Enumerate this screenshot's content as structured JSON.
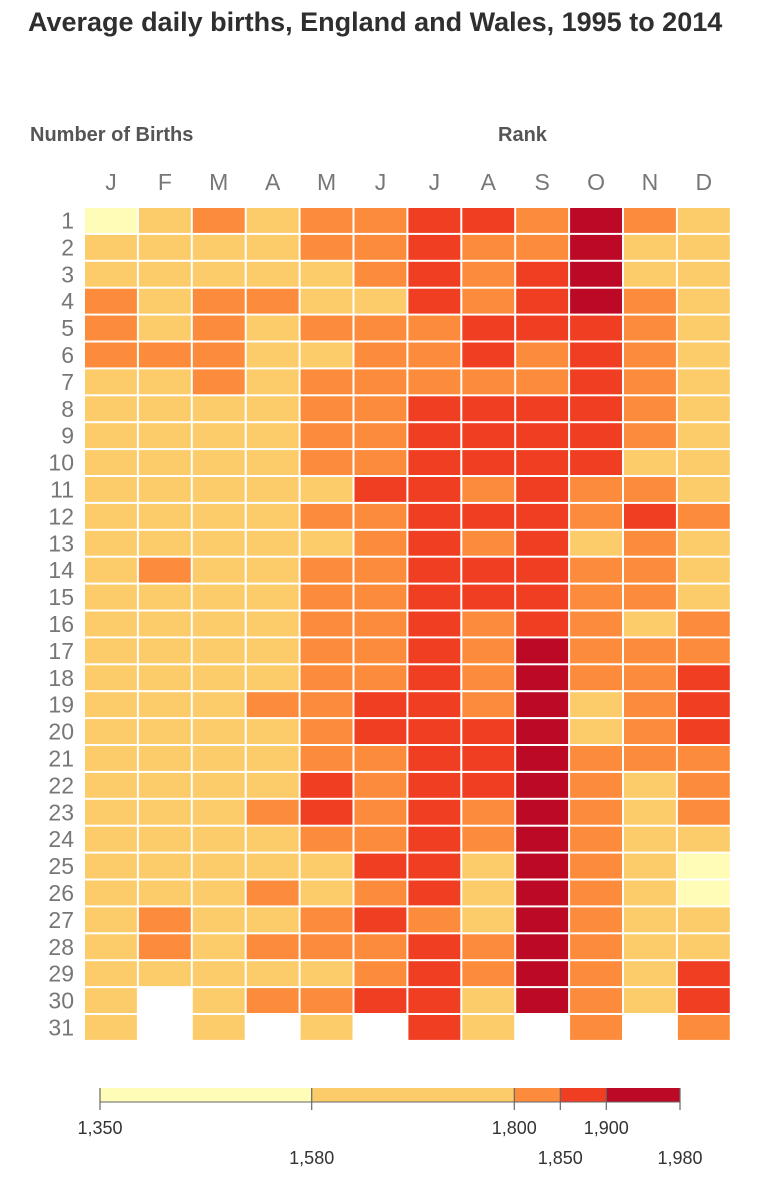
{
  "title": "Average daily births, England and Wales, 1995 to 2014",
  "left_label": "Number of Births",
  "rank_label": "Rank",
  "colors": {
    "c1": "#fffcb8",
    "c2": "#fdcc6a",
    "c3": "#fc8b3c",
    "c4": "#f03e22",
    "c5": "#bc0a26"
  },
  "chart_data": {
    "type": "heatmap",
    "title": "Average daily births, England and Wales, 1995 to 2014",
    "xlabel": "",
    "ylabel": "",
    "months": [
      "J",
      "F",
      "M",
      "A",
      "M",
      "J",
      "J",
      "A",
      "S",
      "O",
      "N",
      "D"
    ],
    "days": [
      1,
      2,
      3,
      4,
      5,
      6,
      7,
      8,
      9,
      10,
      11,
      12,
      13,
      14,
      15,
      16,
      17,
      18,
      19,
      20,
      21,
      22,
      23,
      24,
      25,
      26,
      27,
      28,
      29,
      30,
      31
    ],
    "color_bins": [
      {
        "from": 1350,
        "to": 1580,
        "level": 1
      },
      {
        "from": 1580,
        "to": 1800,
        "level": 2
      },
      {
        "from": 1800,
        "to": 1850,
        "level": 3
      },
      {
        "from": 1850,
        "to": 1900,
        "level": 4
      },
      {
        "from": 1900,
        "to": 1980,
        "level": 5
      }
    ],
    "legend_ticks_upper": [
      "1,350",
      "1,800",
      "1,900"
    ],
    "legend_ticks_lower": [
      "1,580",
      "1,850",
      "1,980"
    ],
    "levels_by_month": [
      [
        1,
        2,
        2,
        3,
        3,
        3,
        2,
        2,
        2,
        2,
        2,
        2,
        2,
        2,
        2,
        2,
        2,
        2,
        2,
        2,
        2,
        2,
        2,
        2,
        2,
        2,
        2,
        2,
        2,
        2,
        2
      ],
      [
        2,
        2,
        2,
        2,
        2,
        3,
        2,
        2,
        2,
        2,
        2,
        2,
        2,
        3,
        2,
        2,
        2,
        2,
        2,
        2,
        2,
        2,
        2,
        2,
        2,
        2,
        3,
        3,
        2,
        0,
        0
      ],
      [
        3,
        2,
        2,
        3,
        3,
        3,
        3,
        2,
        2,
        2,
        2,
        2,
        2,
        2,
        2,
        2,
        2,
        2,
        2,
        2,
        2,
        2,
        2,
        2,
        2,
        2,
        2,
        2,
        2,
        2,
        2
      ],
      [
        2,
        2,
        2,
        3,
        2,
        2,
        2,
        2,
        2,
        2,
        2,
        2,
        2,
        2,
        2,
        2,
        2,
        2,
        3,
        2,
        2,
        2,
        3,
        2,
        2,
        3,
        2,
        3,
        2,
        3,
        0
      ],
      [
        3,
        3,
        2,
        2,
        3,
        2,
        3,
        3,
        3,
        3,
        2,
        3,
        2,
        3,
        3,
        3,
        3,
        3,
        3,
        3,
        3,
        4,
        4,
        3,
        2,
        2,
        3,
        3,
        2,
        3,
        2
      ],
      [
        3,
        3,
        3,
        2,
        3,
        3,
        3,
        3,
        3,
        3,
        4,
        3,
        3,
        3,
        3,
        3,
        3,
        3,
        4,
        4,
        3,
        3,
        3,
        3,
        4,
        3,
        4,
        3,
        3,
        4,
        0
      ],
      [
        4,
        4,
        4,
        4,
        3,
        3,
        3,
        4,
        4,
        4,
        4,
        4,
        4,
        4,
        4,
        4,
        4,
        4,
        4,
        4,
        4,
        4,
        4,
        4,
        4,
        4,
        3,
        4,
        4,
        4,
        4
      ],
      [
        4,
        3,
        3,
        3,
        4,
        4,
        3,
        4,
        4,
        4,
        3,
        4,
        3,
        4,
        4,
        3,
        3,
        3,
        3,
        4,
        4,
        4,
        3,
        3,
        2,
        2,
        2,
        3,
        3,
        2,
        2
      ],
      [
        3,
        3,
        4,
        4,
        4,
        3,
        3,
        4,
        4,
        4,
        4,
        4,
        4,
        4,
        4,
        4,
        5,
        5,
        5,
        5,
        5,
        5,
        5,
        5,
        5,
        5,
        5,
        5,
        5,
        5,
        0
      ],
      [
        5,
        5,
        5,
        5,
        4,
        4,
        4,
        4,
        4,
        4,
        3,
        3,
        2,
        3,
        3,
        3,
        3,
        3,
        2,
        2,
        3,
        3,
        3,
        3,
        3,
        3,
        3,
        3,
        3,
        3,
        3
      ],
      [
        3,
        2,
        2,
        3,
        3,
        3,
        3,
        3,
        3,
        2,
        3,
        4,
        3,
        3,
        3,
        2,
        3,
        3,
        3,
        3,
        3,
        2,
        2,
        2,
        2,
        2,
        2,
        2,
        2,
        2,
        0
      ],
      [
        2,
        2,
        2,
        2,
        2,
        2,
        2,
        2,
        2,
        2,
        2,
        3,
        2,
        2,
        2,
        3,
        3,
        4,
        4,
        4,
        3,
        3,
        3,
        2,
        1,
        1,
        2,
        2,
        4,
        4,
        3
      ]
    ]
  }
}
